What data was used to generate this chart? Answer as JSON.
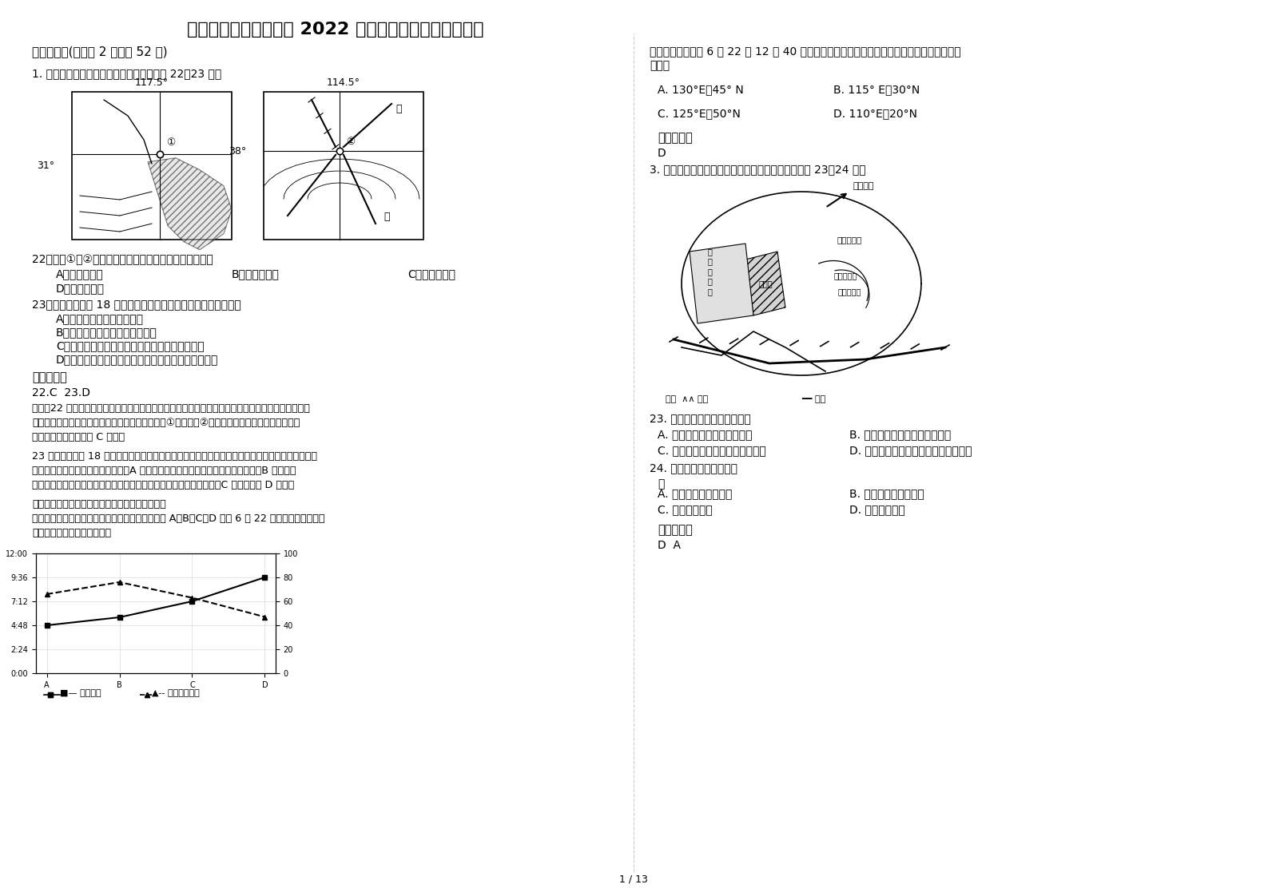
{
  "title": "广东省肇庆市连麦中学 2022 年高三地理月考试题含解析",
  "bg_color": "#ffffff",
  "text_color": "#000000",
  "page_indicator": "1 / 13",
  "left_column": [
    {
      "type": "section",
      "text": "一、选择题(每小题 2 分，共 52 分)"
    },
    {
      "type": "question",
      "text": "1. 下图为我国两省会城市位置图。读图回答 22～23 题。"
    },
    {
      "type": "map_placeholder",
      "id": "map1"
    },
    {
      "type": "sub_question",
      "num": "22",
      "text": "图中①、②两城市形成和发展的主导区位因素分别是"
    },
    {
      "type": "options_2col",
      "A": "河流、矿产",
      "B": "科技、地形",
      "C": "政治、交通",
      "D": "矿产、旅游"
    },
    {
      "type": "sub_question",
      "num": "23",
      "text": "如果北京时间 18 时时两城市正好日落，则下列叙述正确的是"
    },
    {
      "type": "options_1col",
      "options": [
        "A. 地中海气候区域进入雨季",
        "B. 我国东部地区的河流正值汛期",
        "C. 南北半球纬度数相同的纬线正午太阳高度相同",
        "D. 南半球纬度越高昼越长夜越短，南极附近出现极昼"
      ]
    },
    {
      "type": "answer_header",
      "text": "参考答案："
    },
    {
      "type": "answer_text",
      "text": "22.C  23.D"
    },
    {
      "type": "analysis",
      "text": "解析：22 题，影响城市的区位因素有自然因素和社会经济因素。其中自然因素包括河流、地形、气候等；社会经济因素包括资源、交通、政策等。图中①为合肥，②为石家庄，形成的主导区域因素分别是政治和交通。所以 C 正确。"
    },
    {
      "type": "analysis",
      "text": "23 题，北京时间 18 时时两城市正好日落，则北半球昼短夜长，太阳直射点位于南半球，北半球为冬半年，则南半球中海气候区为旱季。A 错误：我国靠大气降水补给的河流为枯水期，B 错误；太阳不直射赤道，所以南北半球纬度数相同的纬线正午太阳高度不相同，C 错误；所以 D 正确。"
    },
    {
      "type": "analysis",
      "text": "【知识点】本题考查城市的区位因素和季节现象。"
    },
    {
      "type": "analysis",
      "text": "【思路点拨】我国某校地理兴趣小组对统计世界上 A、B、C、D 四地 6 月 22 日正午太阳高度和日出时间，绘制简图。读图回答"
    },
    {
      "type": "chart_placeholder",
      "id": "chart1"
    }
  ],
  "right_column": [
    {
      "type": "analysis",
      "text": "该小组于北京时间 6 月 22 日 12 时 40 分测量并记录当地的正午太阳高度角，则当地的经纬度可能为"
    },
    {
      "type": "options_2col_wide",
      "A": "130°E，45° N",
      "B": "115° E，30°N",
      "C": "125°E，50°N",
      "D": "110°E，20°N"
    },
    {
      "type": "answer_header",
      "text": "参考答案："
    },
    {
      "type": "answer_text",
      "text": "D"
    },
    {
      "type": "question",
      "text": "3. 右图是某城镇用地布局规划方案示意图。读图回答 23～24 题。"
    },
    {
      "type": "map_placeholder",
      "id": "map2"
    },
    {
      "type": "sub_question",
      "num": "23",
      "text": "该方案突出优点是规划中的"
    },
    {
      "type": "options_2col_wide",
      "A": "居住区紧靠旧城、临近铁路",
      "B": "居住区环境好、建筑工程量小",
      "C": "工业区靠近水源、铁路交通方便",
      "D": "工业区地势平坦、位于主导风下风向"
    },
    {
      "type": "sub_question",
      "num": "24",
      "text": "适合布局在防护带的是"
    },
    {
      "type": "options_2col_wide",
      "A": "停车场、日用品仓库",
      "B": "幼儿园、日用品仓库",
      "C": "幼儿园、医院",
      "D": "医院、停车场"
    },
    {
      "type": "answer_header",
      "text": "参考答案："
    },
    {
      "type": "answer_text",
      "text": "D  A"
    }
  ]
}
